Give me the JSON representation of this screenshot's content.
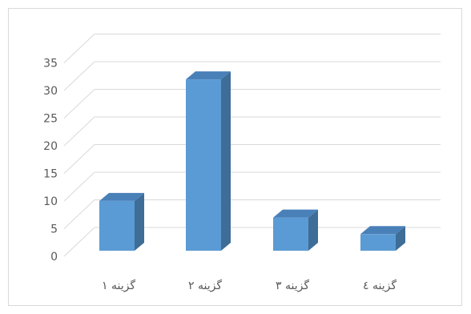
{
  "chart_data": {
    "type": "bar",
    "categories": [
      "گزینه ۱",
      "گزینه ۲",
      "گزینه ۳",
      "گزینه ٤"
    ],
    "values": [
      9,
      31,
      6,
      3
    ],
    "title": "",
    "xlabel": "",
    "ylabel": "",
    "ylim": [
      0,
      35
    ],
    "yticks": [
      0,
      5,
      10,
      15,
      20,
      25,
      30,
      35
    ],
    "grid": true,
    "style": "3d-column",
    "colors": {
      "bar_front": "#5B9BD5",
      "bar_side": "#3E6D98",
      "bar_top": "#4A80B8",
      "grid": "#d9d9d9",
      "text": "#595959"
    }
  }
}
